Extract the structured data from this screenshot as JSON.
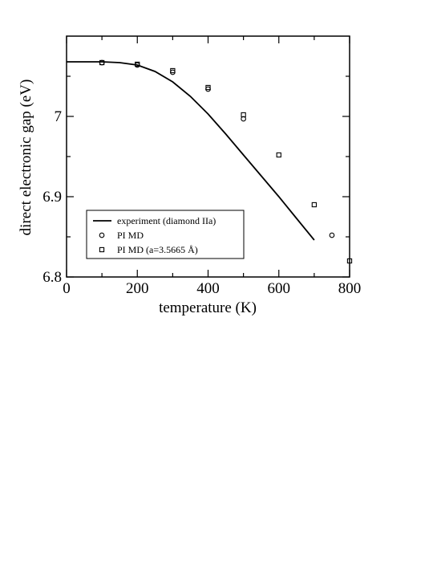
{
  "chart_data": {
    "type": "scatter",
    "title": "",
    "xlabel": "temperature (K)",
    "ylabel": "direct electronic gap (eV)",
    "xlim": [
      0,
      800
    ],
    "ylim": [
      6.8,
      7.1
    ],
    "xticks": [
      0,
      200,
      400,
      600,
      800
    ],
    "yticks": [
      6.8,
      6.9,
      7.0
    ],
    "xtick_labels": [
      "0",
      "200",
      "400",
      "600",
      "800"
    ],
    "ytick_labels": [
      "6.8",
      "6.9",
      "7"
    ],
    "grid": false,
    "legend_position": "lower-left",
    "series": [
      {
        "name": "experiment (diamond IIa)",
        "kind": "line",
        "x": [
          0,
          50,
          100,
          150,
          200,
          250,
          300,
          350,
          400,
          450,
          500,
          550,
          600,
          650,
          700
        ],
        "y": [
          7.068,
          7.068,
          7.068,
          7.067,
          7.064,
          7.056,
          7.043,
          7.025,
          7.003,
          6.978,
          6.952,
          6.926,
          6.9,
          6.873,
          6.846
        ]
      },
      {
        "name": "PI MD",
        "kind": "marker",
        "marker": "circle",
        "x": [
          100,
          200,
          300,
          400,
          500,
          750
        ],
        "y": [
          7.067,
          7.064,
          7.055,
          7.034,
          6.997,
          6.852
        ]
      },
      {
        "name": "PI MD (a=3.5665 Å)",
        "kind": "marker",
        "marker": "square",
        "x": [
          100,
          200,
          300,
          400,
          500,
          600,
          700,
          800
        ],
        "y": [
          7.067,
          7.065,
          7.057,
          7.036,
          7.002,
          6.952,
          6.89,
          6.82
        ]
      }
    ]
  }
}
